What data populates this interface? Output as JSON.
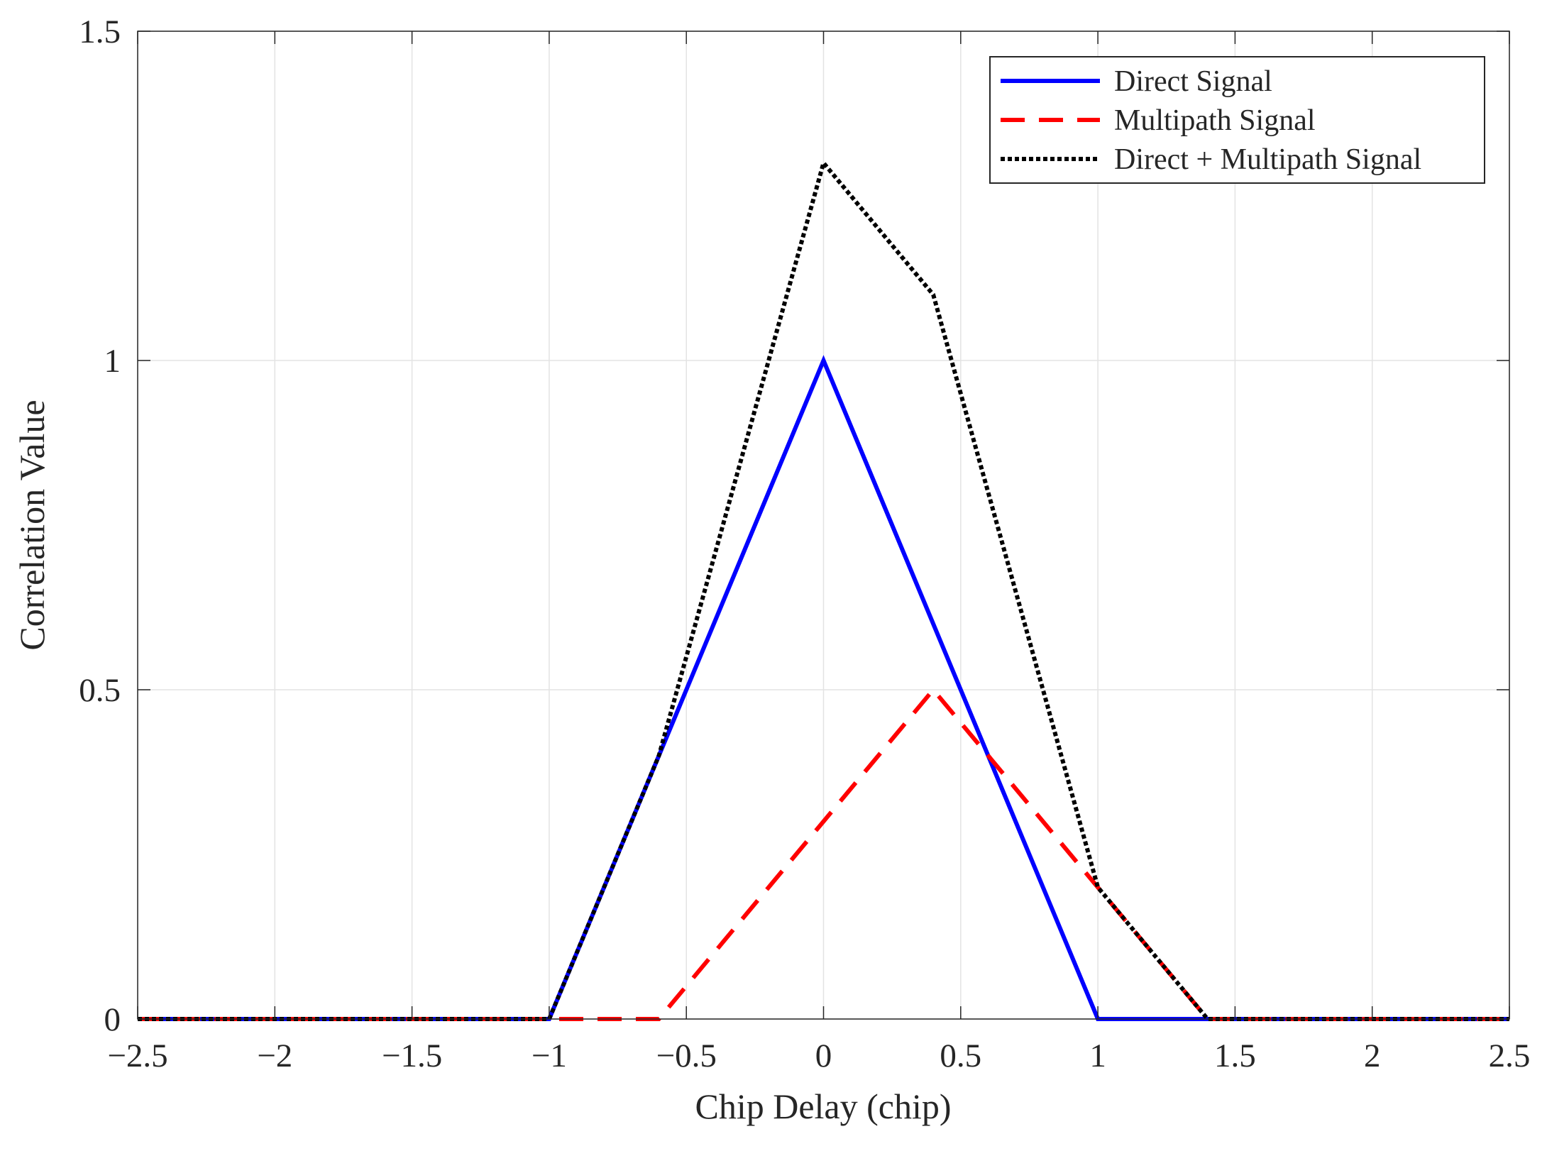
{
  "chart_data": {
    "type": "line",
    "title": "",
    "xlabel": "Chip Delay (chip)",
    "ylabel": "Correlation Value",
    "xlim": [
      -2.5,
      2.5
    ],
    "ylim": [
      0,
      1.5
    ],
    "xticks": [
      -2.5,
      -2,
      -1.5,
      -1,
      -0.5,
      0,
      0.5,
      1,
      1.5,
      2,
      2.5
    ],
    "xtick_labels": [
      "−2.5",
      "−2",
      "−1.5",
      "−1",
      "−0.5",
      "0",
      "0.5",
      "1",
      "1.5",
      "2",
      "2.5"
    ],
    "yticks": [
      0,
      0.5,
      1,
      1.5
    ],
    "ytick_labels": [
      "0",
      "0.5",
      "1",
      "1.5"
    ],
    "grid": true,
    "legend_position": "top-right",
    "series": [
      {
        "name": "Direct Signal",
        "color": "#0000ff",
        "style": "solid",
        "x": [
          -2.5,
          -1,
          0,
          1,
          2.5
        ],
        "y": [
          0,
          0,
          1,
          0,
          0
        ]
      },
      {
        "name": "Multipath Signal",
        "color": "#ff0000",
        "style": "dashed",
        "x": [
          -2.5,
          -0.6,
          0.4,
          1.4,
          2.5
        ],
        "y": [
          0,
          0,
          0.5,
          0,
          0
        ]
      },
      {
        "name": "Direct + Multipath Signal",
        "color": "#000000",
        "style": "dotted",
        "x": [
          -2.5,
          -1,
          -0.6,
          0,
          0.4,
          1,
          1.4,
          2.5
        ],
        "y": [
          0,
          0,
          0.4,
          1.3,
          1.1,
          0.2,
          0,
          0
        ]
      }
    ]
  }
}
